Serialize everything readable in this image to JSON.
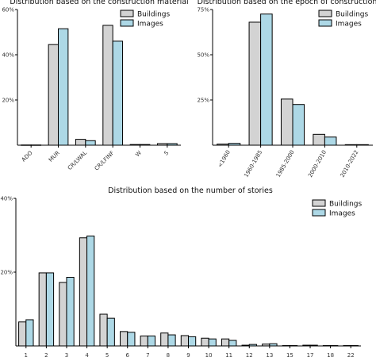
{
  "colors": {
    "buildings": "#d3d3d3",
    "images": "#add8e6",
    "edge": "#000000"
  },
  "chart_data": [
    {
      "type": "bar",
      "title": "Distribution based on the construction material",
      "categories": [
        "ADO",
        "MUR",
        "CR/LWAL",
        "CR/LFINF",
        "W",
        "S"
      ],
      "series": [
        {
          "name": "Buildings",
          "values": [
            0.1,
            44.5,
            2.6,
            53.0,
            0.3,
            0.7
          ]
        },
        {
          "name": "Images",
          "values": [
            0.1,
            51.5,
            2.0,
            46.0,
            0.3,
            0.7
          ]
        }
      ],
      "ylim": [
        0,
        60
      ],
      "yticks": [
        {
          "v": 20,
          "label": "20%"
        },
        {
          "v": 40,
          "label": "40%"
        },
        {
          "v": 60,
          "label": "60%"
        }
      ],
      "legend": "top-right"
    },
    {
      "type": "bar",
      "title": "Distribution based on the epoch of construction",
      "categories": [
        "<1960",
        "1960-1985",
        "1985-2000",
        "2000-2010",
        "2010-2022"
      ],
      "series": [
        {
          "name": "Buildings",
          "values": [
            0.6,
            68.0,
            25.5,
            6.0,
            0.3
          ]
        },
        {
          "name": "Images",
          "values": [
            1.0,
            72.5,
            22.5,
            4.5,
            0.3
          ]
        }
      ],
      "ylim": [
        0,
        75
      ],
      "yticks": [
        {
          "v": 25,
          "label": "25%"
        },
        {
          "v": 50,
          "label": "50%"
        },
        {
          "v": 75,
          "label": "75%"
        }
      ],
      "legend": "top-right"
    },
    {
      "type": "bar",
      "title": "Distribution based on the number of stories",
      "categories": [
        "1",
        "2",
        "3",
        "4",
        "5",
        "6",
        "7",
        "8",
        "9",
        "10",
        "11",
        "12",
        "13",
        "15",
        "17",
        "18",
        "22"
      ],
      "series": [
        {
          "name": "Buildings",
          "values": [
            6.5,
            19.8,
            17.2,
            29.3,
            8.6,
            3.9,
            2.7,
            3.5,
            2.8,
            2.1,
            1.9,
            0.2,
            0.5,
            0.1,
            0.2,
            0.1,
            0.1
          ]
        },
        {
          "name": "Images",
          "values": [
            7.1,
            19.8,
            18.6,
            29.8,
            7.5,
            3.7,
            2.7,
            3.0,
            2.5,
            1.9,
            1.5,
            0.4,
            0.6,
            0.1,
            0.2,
            0.1,
            0.1
          ]
        }
      ],
      "ylim": [
        0,
        40
      ],
      "yticks": [
        {
          "v": 20,
          "label": "20%"
        },
        {
          "v": 40,
          "label": "40%"
        }
      ],
      "legend": "top-right"
    }
  ]
}
